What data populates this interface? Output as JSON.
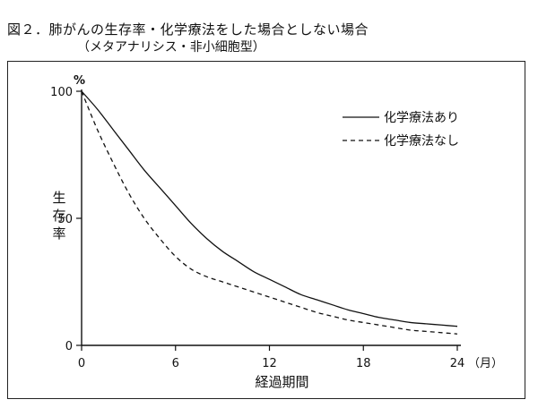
{
  "title": "図２．肺がんの生存率・化学療法をした場合としない場合",
  "subtitle": "（メタアナリシス・非小細胞型）",
  "chart_data": {
    "type": "line",
    "title": "図２．肺がんの生存率・化学療法をした場合としない場合",
    "subtitle": "（メタアナリシス・非小細胞型）",
    "xlabel": "経過期間",
    "x_unit": "（月）",
    "ylabel": "生存率",
    "y_unit": "%",
    "xlim": [
      0,
      24
    ],
    "ylim": [
      0,
      100
    ],
    "x_ticks": [
      0,
      6,
      12,
      18,
      24
    ],
    "x_tick_labels": [
      "0",
      "6",
      "12",
      "18",
      "24"
    ],
    "y_ticks": [
      0,
      50,
      100
    ],
    "y_tick_labels": [
      "0",
      "50",
      "100"
    ],
    "grid": false,
    "legend_position": "top-right",
    "series": [
      {
        "name": "化学療法あり",
        "style": "solid",
        "x": [
          0,
          1,
          2,
          3,
          4,
          5,
          6,
          7,
          8,
          9,
          10,
          11,
          12,
          13,
          14,
          15,
          16,
          17,
          18,
          19,
          20,
          21,
          22,
          23,
          24
        ],
        "y": [
          100,
          93,
          85,
          77,
          69,
          62,
          55,
          48,
          42,
          37,
          33,
          29,
          26,
          23,
          20,
          18,
          16,
          14,
          12.5,
          11,
          10,
          9,
          8.5,
          8,
          7.5
        ]
      },
      {
        "name": "化学療法なし",
        "style": "dashed",
        "x": [
          0,
          1,
          2,
          3,
          4,
          5,
          6,
          7,
          8,
          9,
          10,
          11,
          12,
          13,
          14,
          15,
          16,
          17,
          18,
          19,
          20,
          21,
          22,
          23,
          24
        ],
        "y": [
          100,
          85,
          72,
          60,
          50,
          42,
          35,
          30,
          27,
          25,
          23,
          21,
          19,
          17,
          15,
          13,
          11.5,
          10,
          9,
          8,
          7,
          6,
          5.5,
          5,
          4.5
        ]
      }
    ]
  }
}
